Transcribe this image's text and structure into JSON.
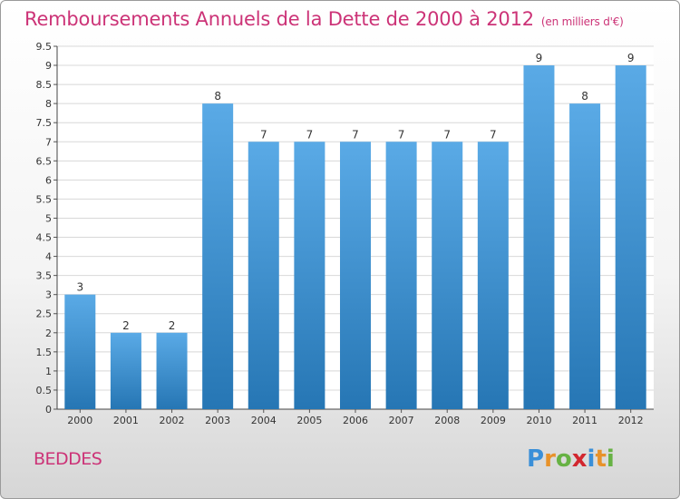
{
  "chart_data": {
    "type": "bar",
    "title": "Remboursements Annuels de la Dette de 2000 à 2012",
    "unit_note": "(en milliers d'€)",
    "categories": [
      "2000",
      "2001",
      "2002",
      "2003",
      "2004",
      "2005",
      "2006",
      "2007",
      "2008",
      "2009",
      "2010",
      "2011",
      "2012"
    ],
    "values": [
      3,
      2,
      2,
      8,
      7,
      7,
      7,
      7,
      7,
      7,
      9,
      8,
      9
    ],
    "data_labels": [
      "3",
      "2",
      "2",
      "8",
      "7",
      "7",
      "7",
      "7",
      "7",
      "7",
      "9",
      "8",
      "9"
    ],
    "y_ticks": [
      "0",
      "0.5",
      "1",
      "1.5",
      "2",
      "2.5",
      "3",
      "3.5",
      "4",
      "4.5",
      "5",
      "5.5",
      "6",
      "6.5",
      "7",
      "7.5",
      "8",
      "8.5",
      "9",
      "9.5"
    ],
    "ylim": [
      0,
      9.5
    ],
    "xlabel": "",
    "ylabel": "",
    "grid": true,
    "bar_color_top": "#5aaae6",
    "bar_color_bottom": "#2676b4"
  },
  "commune": "BEDDES",
  "logo": {
    "letters": [
      "P",
      "r",
      "o",
      "x",
      "i",
      "t",
      "i"
    ],
    "colors": [
      "#3a8fd8",
      "#e8922a",
      "#67b244",
      "#d2272f",
      "#3a8fd8",
      "#e8922a",
      "#67b244"
    ]
  }
}
